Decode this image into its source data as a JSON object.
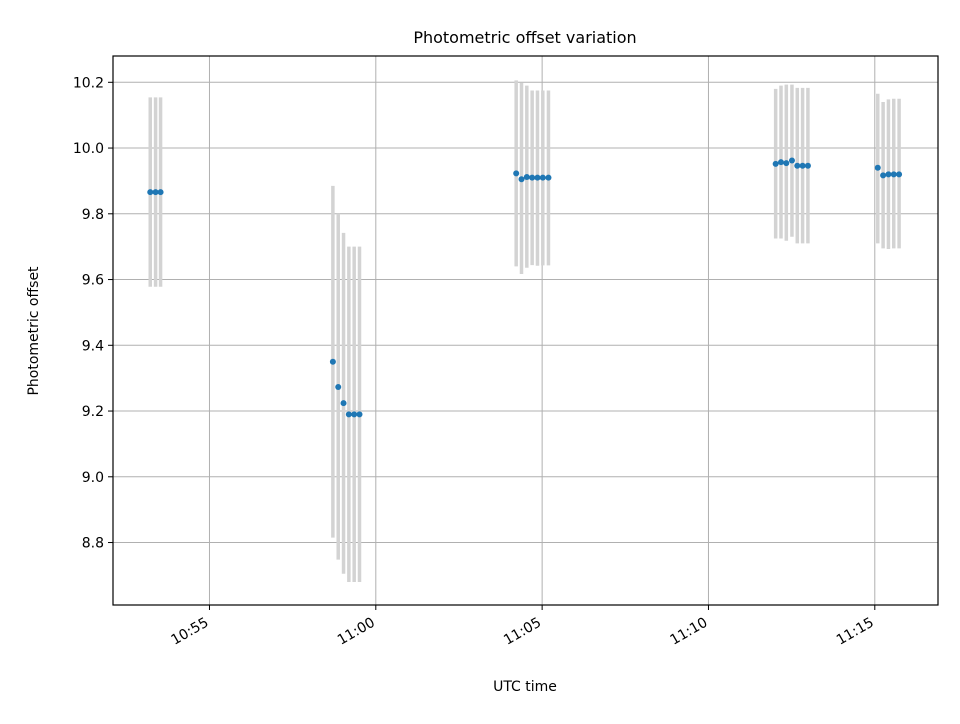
{
  "chart_data": {
    "type": "scatter",
    "title": "Photometric offset variation",
    "xlabel": "UTC time",
    "ylabel": "Photometric offset",
    "xlim_minutes": [
      652.1,
      676.9
    ],
    "ylim": [
      8.61,
      10.28
    ],
    "x_ticks": [
      {
        "label": "10:55",
        "value": 655
      },
      {
        "label": "11:00",
        "value": 660
      },
      {
        "label": "11:05",
        "value": 665
      },
      {
        "label": "11:10",
        "value": 670
      },
      {
        "label": "11:15",
        "value": 675
      }
    ],
    "y_ticks": [
      8.8,
      9.0,
      9.2,
      9.4,
      9.6,
      9.8,
      10.0,
      10.2
    ],
    "y_tick_labels": [
      "8.8",
      "9.0",
      "9.2",
      "9.4",
      "9.6",
      "9.8",
      "10.0",
      "10.2"
    ],
    "grid": true,
    "colors": {
      "marker": "#1f77b4",
      "errorbar": "#d3d3d3",
      "grid": "#b0b0b0"
    },
    "series": [
      {
        "name": "offset",
        "points": [
          {
            "t": 653.22,
            "y": 9.866,
            "lo": 9.578,
            "hi": 10.154
          },
          {
            "t": 653.38,
            "y": 9.866,
            "lo": 9.578,
            "hi": 10.154
          },
          {
            "t": 653.53,
            "y": 9.866,
            "lo": 9.578,
            "hi": 10.154
          },
          {
            "t": 658.71,
            "y": 9.35,
            "lo": 8.815,
            "hi": 9.885
          },
          {
            "t": 658.87,
            "y": 9.273,
            "lo": 8.748,
            "hi": 9.8
          },
          {
            "t": 659.03,
            "y": 9.224,
            "lo": 8.705,
            "hi": 9.742
          },
          {
            "t": 659.19,
            "y": 9.19,
            "lo": 8.68,
            "hi": 9.7
          },
          {
            "t": 659.35,
            "y": 9.19,
            "lo": 8.68,
            "hi": 9.7
          },
          {
            "t": 659.51,
            "y": 9.19,
            "lo": 8.68,
            "hi": 9.7
          },
          {
            "t": 664.22,
            "y": 9.923,
            "lo": 9.64,
            "hi": 10.206
          },
          {
            "t": 664.38,
            "y": 9.905,
            "lo": 9.617,
            "hi": 10.199
          },
          {
            "t": 664.54,
            "y": 9.912,
            "lo": 9.636,
            "hi": 10.19
          },
          {
            "t": 664.7,
            "y": 9.91,
            "lo": 9.644,
            "hi": 10.175
          },
          {
            "t": 664.86,
            "y": 9.91,
            "lo": 9.642,
            "hi": 10.175
          },
          {
            "t": 665.02,
            "y": 9.91,
            "lo": 9.643,
            "hi": 10.175
          },
          {
            "t": 665.19,
            "y": 9.91,
            "lo": 9.643,
            "hi": 10.175
          },
          {
            "t": 672.02,
            "y": 9.952,
            "lo": 9.725,
            "hi": 10.18
          },
          {
            "t": 672.18,
            "y": 9.957,
            "lo": 9.725,
            "hi": 10.19
          },
          {
            "t": 672.34,
            "y": 9.954,
            "lo": 9.718,
            "hi": 10.193
          },
          {
            "t": 672.51,
            "y": 9.962,
            "lo": 9.73,
            "hi": 10.193
          },
          {
            "t": 672.67,
            "y": 9.946,
            "lo": 9.71,
            "hi": 10.183
          },
          {
            "t": 672.83,
            "y": 9.946,
            "lo": 9.71,
            "hi": 10.183
          },
          {
            "t": 672.99,
            "y": 9.946,
            "lo": 9.71,
            "hi": 10.183
          },
          {
            "t": 675.09,
            "y": 9.94,
            "lo": 9.71,
            "hi": 10.165
          },
          {
            "t": 675.25,
            "y": 9.917,
            "lo": 9.695,
            "hi": 10.14
          },
          {
            "t": 675.41,
            "y": 9.92,
            "lo": 9.693,
            "hi": 10.148
          },
          {
            "t": 675.57,
            "y": 9.92,
            "lo": 9.695,
            "hi": 10.15
          },
          {
            "t": 675.73,
            "y": 9.92,
            "lo": 9.695,
            "hi": 10.15
          }
        ]
      }
    ]
  }
}
